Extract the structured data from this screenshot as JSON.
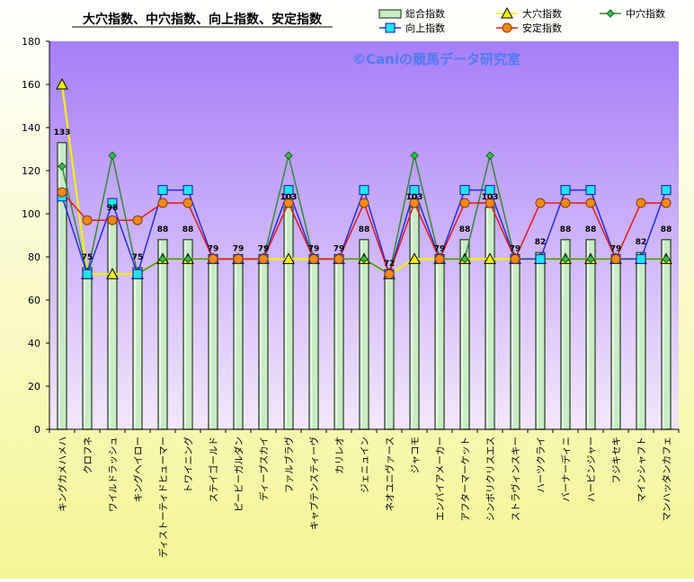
{
  "chart_data": {
    "type": "bar",
    "title": "大穴指数、中穴指数、向上指数、安定指数",
    "watermark": "©Caniの競馬データ研究室",
    "xlabel": "",
    "ylabel": "",
    "ylim": [
      0,
      180
    ],
    "yticks": [
      0,
      20,
      40,
      60,
      80,
      100,
      120,
      140,
      160,
      180
    ],
    "grid": false,
    "legend_position": "top-right",
    "colors": {
      "plot_bg_top": "#a67ef8",
      "plot_bg_bottom": "#f4e6fb",
      "page_bg_top": "#ffffff",
      "page_bg_bottom": "#f4f495",
      "bar_fill": "#c8ecc4",
      "bar_stroke": "#2d4a2b",
      "daiana": "#f2f200",
      "chuuana": "#2f8a3a",
      "koujou": "#1e2ee0",
      "antei": "#e01818",
      "watermark": "#4f7cf0"
    },
    "categories": [
      "キングカメハメハ",
      "クロフネ",
      "ワイルドラッシュ",
      "キングヘイロー",
      "ディストーティドヒューマー",
      "トワイニング",
      "ステイゴールド",
      "ピービーガルダン",
      "ディープスカイ",
      "ファルブラヴ",
      "キャプテンスティーヴ",
      "カリレオ",
      "ジェニュイン",
      "ネオユニヴァース",
      "ジャコモ",
      "エンパイアメーカー",
      "アフターマーケット",
      "シンボリクリスエス",
      "ストラヴィンスキー",
      "ハーツクライ",
      "バーナーディニ",
      "ハービンジャー",
      "フジキセキ",
      "マインシャフト",
      "マンハッタンカフェ"
    ],
    "series": [
      {
        "name": "総合指数",
        "type": "bar",
        "values": [
          133,
          75,
          98,
          75,
          88,
          88,
          79,
          79,
          79,
          103,
          79,
          79,
          88,
          72,
          103,
          79,
          88,
          103,
          79,
          82,
          88,
          88,
          79,
          82,
          88
        ],
        "labels": [
          "133",
          "75",
          "98",
          "75",
          "88",
          "88",
          "79",
          "79",
          "79",
          "103",
          "79",
          "79",
          "88",
          "72",
          "103",
          "79",
          "88",
          "103",
          "79",
          "82",
          "88",
          "88",
          "79",
          "82",
          "88"
        ]
      },
      {
        "name": "大穴指数",
        "type": "line",
        "marker": "triangle",
        "values": [
          160,
          72,
          72,
          72,
          79,
          79,
          79,
          79,
          79,
          79,
          79,
          79,
          79,
          72,
          79,
          79,
          79,
          79,
          79,
          79,
          79,
          79,
          79,
          79,
          79
        ]
      },
      {
        "name": "中穴指数",
        "type": "line",
        "marker": "diamond",
        "values": [
          122,
          72,
          127,
          72,
          79,
          79,
          79,
          79,
          79,
          127,
          79,
          79,
          79,
          72,
          127,
          79,
          79,
          127,
          79,
          79,
          79,
          79,
          79,
          79,
          79
        ]
      },
      {
        "name": "向上指数",
        "type": "line",
        "marker": "square",
        "values": [
          108,
          72,
          105,
          72,
          111,
          111,
          79,
          79,
          79,
          111,
          79,
          79,
          111,
          72,
          111,
          79,
          111,
          111,
          79,
          79,
          111,
          111,
          79,
          79,
          111
        ]
      },
      {
        "name": "安定指数",
        "type": "line",
        "marker": "circle",
        "values": [
          110,
          97,
          97,
          97,
          105,
          105,
          79,
          79,
          79,
          105,
          79,
          79,
          105,
          72,
          105,
          79,
          105,
          105,
          79,
          105,
          105,
          105,
          79,
          105,
          105
        ]
      }
    ]
  }
}
